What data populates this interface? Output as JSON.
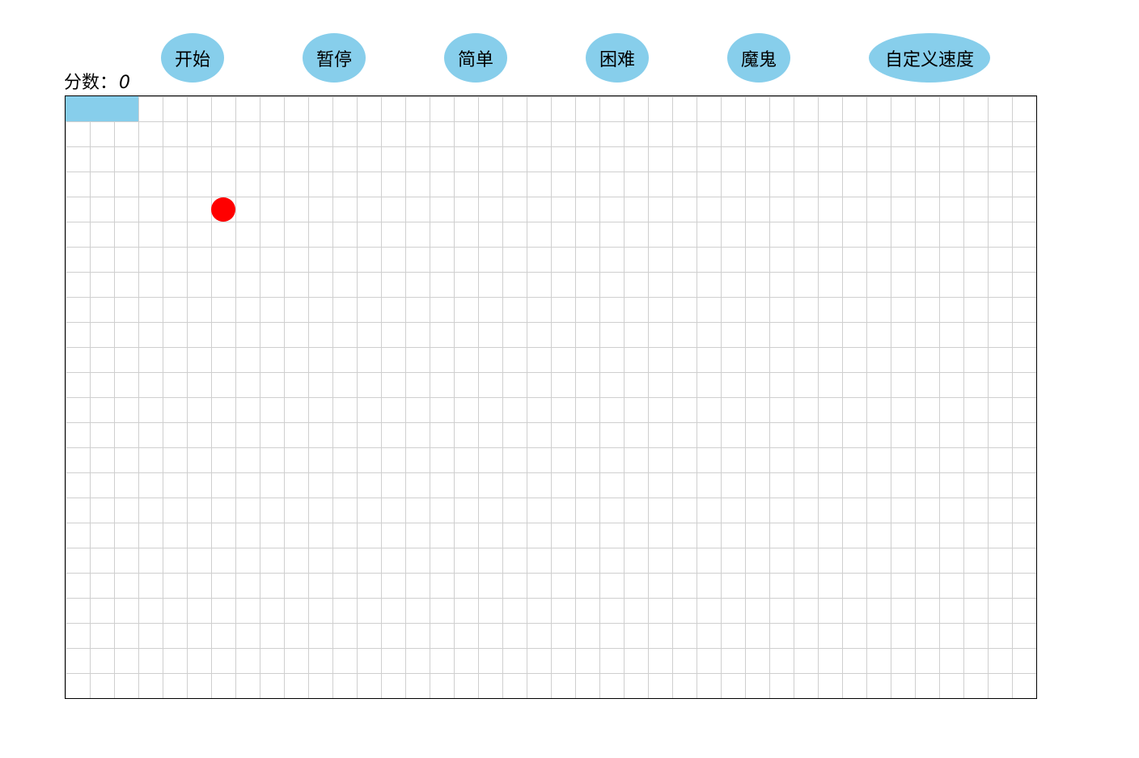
{
  "controls": {
    "start_label": "开始",
    "pause_label": "暂停",
    "easy_label": "简单",
    "hard_label": "困难",
    "devil_label": "魔鬼",
    "custom_speed_label": "自定义速度",
    "button_color": "#87CEEB"
  },
  "score": {
    "label": "分数：",
    "value": "0"
  },
  "board": {
    "columns": 40,
    "rows": 24,
    "snake": [
      {
        "col": 0,
        "row": 0
      },
      {
        "col": 1,
        "row": 0
      },
      {
        "col": 2,
        "row": 0
      }
    ],
    "food": {
      "col": 6,
      "row": 4
    },
    "snake_color": "#87CEEB",
    "food_color": "#ff0000",
    "grid_line_color": "#cfcfcf"
  }
}
